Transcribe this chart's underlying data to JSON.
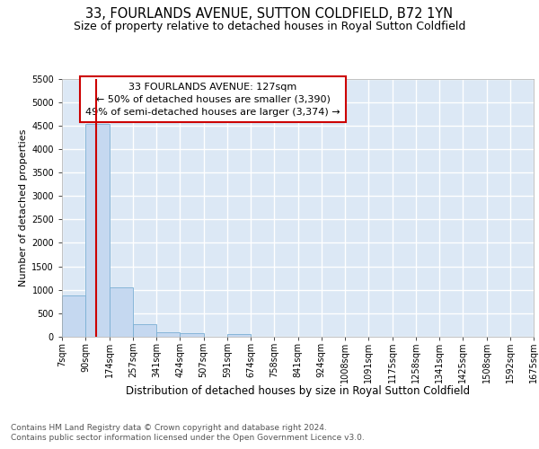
{
  "title1": "33, FOURLANDS AVENUE, SUTTON COLDFIELD, B72 1YN",
  "title2": "Size of property relative to detached houses in Royal Sutton Coldfield",
  "xlabel": "Distribution of detached houses by size in Royal Sutton Coldfield",
  "ylabel": "Number of detached properties",
  "footer1": "Contains HM Land Registry data © Crown copyright and database right 2024.",
  "footer2": "Contains public sector information licensed under the Open Government Licence v3.0.",
  "bin_labels": [
    "7sqm",
    "90sqm",
    "174sqm",
    "257sqm",
    "341sqm",
    "424sqm",
    "507sqm",
    "591sqm",
    "674sqm",
    "758sqm",
    "841sqm",
    "924sqm",
    "1008sqm",
    "1091sqm",
    "1175sqm",
    "1258sqm",
    "1341sqm",
    "1425sqm",
    "1508sqm",
    "1592sqm",
    "1675sqm"
  ],
  "bar_values": [
    880,
    4540,
    1060,
    270,
    90,
    75,
    0,
    60,
    0,
    0,
    0,
    0,
    0,
    0,
    0,
    0,
    0,
    0,
    0,
    0
  ],
  "bar_color": "#c5d8f0",
  "bar_edge_color": "#7aafd4",
  "vline_color": "#cc0000",
  "annotation_line1": "33 FOURLANDS AVENUE: 127sqm",
  "annotation_line2": "← 50% of detached houses are smaller (3,390)",
  "annotation_line3": "49% of semi-detached houses are larger (3,374) →",
  "annotation_box_edgecolor": "#cc0000",
  "ylim_max": 5500,
  "yticks": [
    0,
    500,
    1000,
    1500,
    2000,
    2500,
    3000,
    3500,
    4000,
    4500,
    5000,
    5500
  ],
  "plot_bg_color": "#dce8f5",
  "grid_color": "#ffffff",
  "title1_fontsize": 10.5,
  "title2_fontsize": 9,
  "xlabel_fontsize": 8.5,
  "ylabel_fontsize": 8,
  "tick_fontsize": 7,
  "annot_fontsize": 8,
  "footer_fontsize": 6.5
}
